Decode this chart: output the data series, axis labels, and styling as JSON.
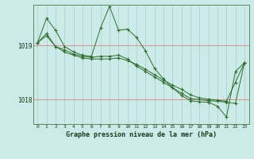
{
  "title": "Graphe pression niveau de la mer (hPa)",
  "bg_color": "#cceae7",
  "grid_color": "#aad4d0",
  "line_color": "#2d6e2d",
  "ylim": [
    1017.55,
    1019.75
  ],
  "yticks": [
    1018,
    1019
  ],
  "xlim": [
    -0.5,
    23.5
  ],
  "xticks": [
    0,
    1,
    2,
    3,
    4,
    5,
    6,
    7,
    8,
    9,
    10,
    11,
    12,
    13,
    14,
    15,
    16,
    17,
    18,
    19,
    20,
    21,
    22,
    23
  ],
  "series1": [
    1019.05,
    1019.5,
    1019.28,
    1018.98,
    1018.88,
    1018.82,
    1018.8,
    1019.32,
    1019.72,
    1019.28,
    1019.3,
    1019.15,
    1018.9,
    1018.58,
    1018.38,
    1018.22,
    1018.08,
    1017.98,
    1017.96,
    1017.95,
    1017.88,
    1017.68,
    1018.52,
    1018.68
  ],
  "series2": [
    1019.05,
    1019.18,
    1018.98,
    1018.92,
    1018.84,
    1018.8,
    1018.78,
    1018.8,
    1018.8,
    1018.82,
    1018.75,
    1018.62,
    1018.52,
    1018.42,
    1018.32,
    1018.22,
    1018.12,
    1018.02,
    1018.0,
    1017.98,
    1017.97,
    1017.95,
    1017.93,
    1018.68
  ],
  "series3": [
    1019.05,
    1019.22,
    1018.98,
    1018.88,
    1018.82,
    1018.77,
    1018.75,
    1018.75,
    1018.75,
    1018.77,
    1018.72,
    1018.65,
    1018.56,
    1018.46,
    1018.36,
    1018.27,
    1018.19,
    1018.09,
    1018.03,
    1018.01,
    1017.99,
    1017.97,
    1018.32,
    1018.68
  ]
}
